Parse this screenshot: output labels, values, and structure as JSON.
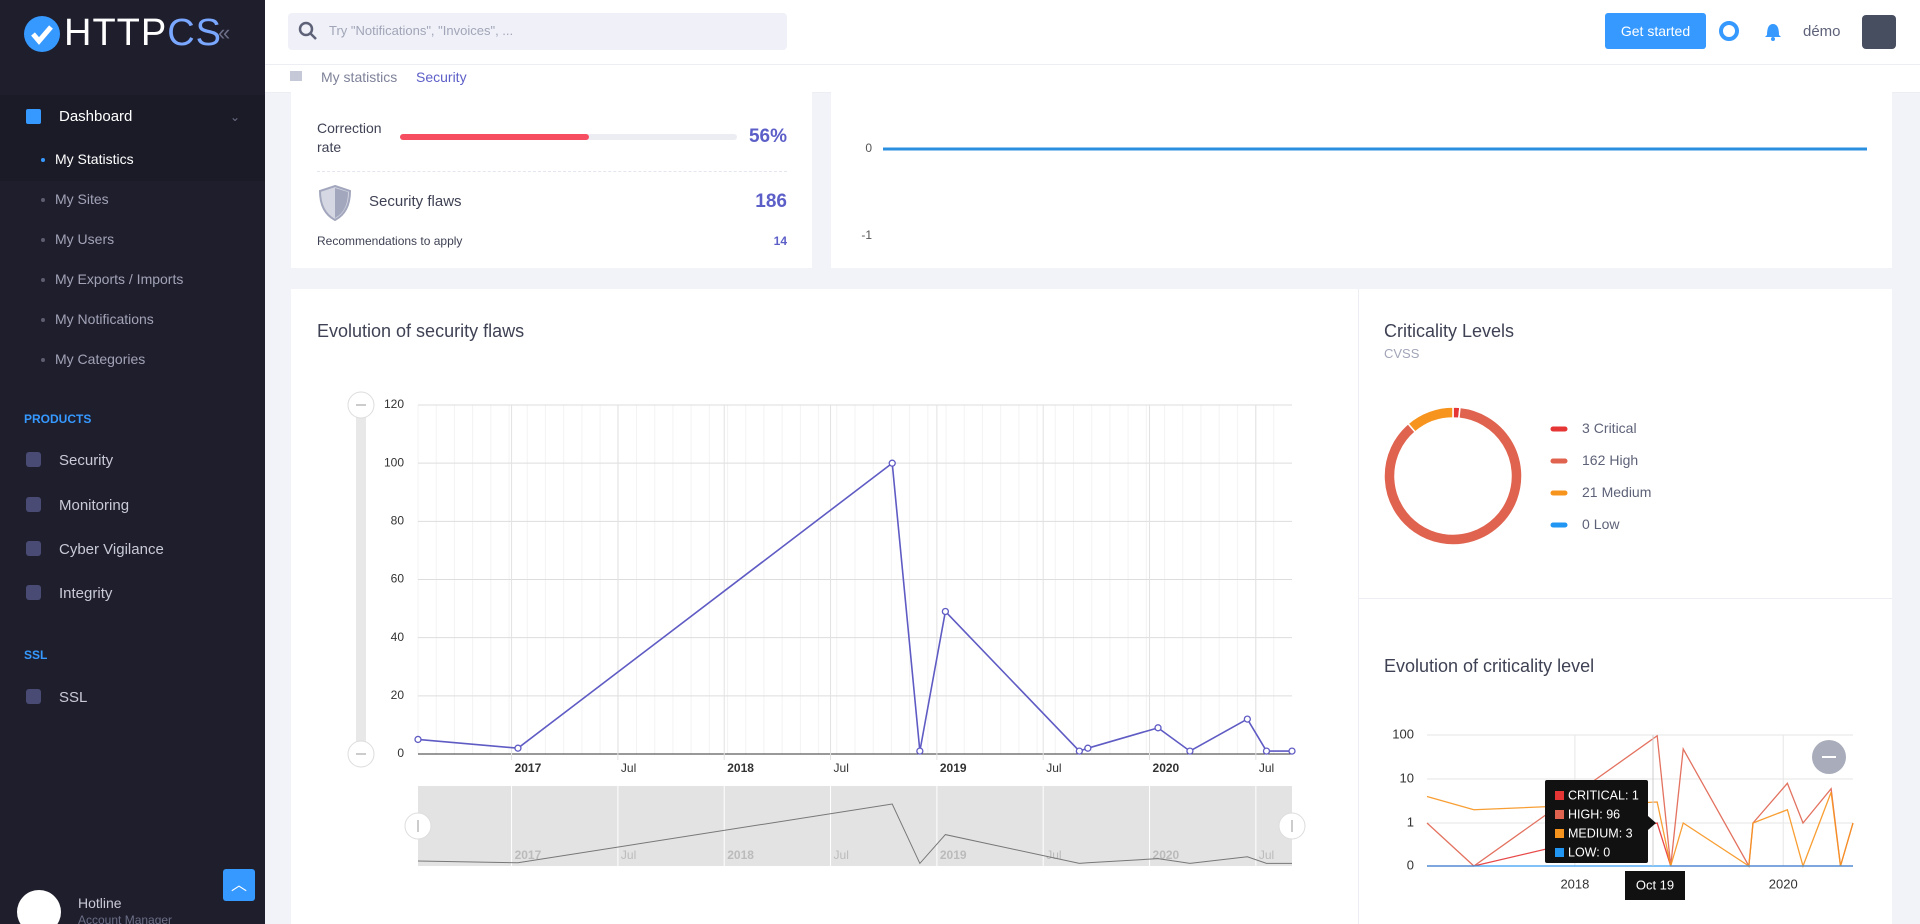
{
  "sidebar": {
    "logo": {
      "a": "HTTP",
      "b": "CS"
    },
    "menu": {
      "title": "Dashboard",
      "items": [
        "My Statistics",
        "My Sites",
        "My Users",
        "My Exports / Imports",
        "My Notifications",
        "My Categories"
      ]
    },
    "sections": [
      {
        "title": "PRODUCTS",
        "items": [
          "Security",
          "Monitoring",
          "Cyber Vigilance",
          "Integrity"
        ]
      },
      {
        "title": "SSL",
        "items": [
          "SSL"
        ]
      }
    ],
    "contact": {
      "name": "Hotline",
      "role": "Account Manager"
    }
  },
  "header": {
    "search_placeholder": "Try \"Notifications\", \"Invoices\", ...",
    "button": "Get started",
    "user": "démo"
  },
  "breadcrumb": [
    "My statistics",
    "Security"
  ],
  "summary": {
    "correction_rate": {
      "label": "Correction rate",
      "value": 56,
      "value_label": "56%"
    },
    "flaws": {
      "label": "Security flaws",
      "value": 186
    },
    "recommendations": {
      "label": "Recommendations to apply",
      "value": 14
    }
  },
  "chart_data": [
    {
      "type": "line",
      "values": [
        0,
        0
      ],
      "color": "#2b8fe0",
      "ylim": [
        -1,
        0
      ],
      "yticks": [
        0,
        -1
      ]
    },
    {
      "type": "line",
      "title": "Evolution of security flaws",
      "x": [
        2016.56,
        2017.03,
        2018.79,
        2018.92,
        2019.04,
        2019.67,
        2019.71,
        2020.04,
        2020.19,
        2020.46,
        2020.55,
        2020.67
      ],
      "series": [
        {
          "color": "#5f5bc4",
          "values": [
            5,
            2,
            100,
            1,
            49,
            1,
            2,
            9,
            1,
            12,
            1,
            1
          ]
        }
      ],
      "xlim": [
        2016.56,
        2020.67
      ],
      "xticks": [
        {
          "value": 2017,
          "label": "2017"
        },
        {
          "value": 2017.5,
          "label": "Jul"
        },
        {
          "value": 2018,
          "label": "2018"
        },
        {
          "value": 2018.5,
          "label": "Jul"
        },
        {
          "value": 2019,
          "label": "2019"
        },
        {
          "value": 2019.5,
          "label": "Jul"
        },
        {
          "value": 2020,
          "label": "2020"
        },
        {
          "value": 2020.5,
          "label": "Jul"
        }
      ],
      "ylim": [
        0,
        120
      ],
      "yticks": [
        0,
        20,
        40,
        60,
        80,
        100,
        120
      ],
      "grid": true,
      "navigator": true
    },
    {
      "type": "donut",
      "title": "Criticality Levels",
      "subtitle": "CVSS",
      "categories": [
        "Critical",
        "High",
        "Medium",
        "Low"
      ],
      "values": [
        3,
        162,
        21,
        0
      ],
      "colors": [
        "#e63535",
        "#e0634f",
        "#f7941d",
        "#2196f3"
      ]
    },
    {
      "type": "line",
      "title": "Evolution of criticality level",
      "log_scale": true,
      "x": [
        2016.58,
        2017.03,
        2018.79,
        2018.92,
        2019.04,
        2019.67,
        2019.71,
        2020.04,
        2020.19,
        2020.46,
        2020.55,
        2020.67
      ],
      "series": [
        {
          "color": "#e63535",
          "values": [
            0,
            0,
            1,
            0,
            0,
            0,
            0,
            0,
            0,
            0,
            0,
            0
          ]
        },
        {
          "color": "#e0634f",
          "values": [
            1,
            0,
            96,
            0,
            48,
            0,
            1,
            8,
            1,
            6,
            0,
            1
          ]
        },
        {
          "color": "#f7941d",
          "values": [
            4,
            2,
            3,
            0,
            1,
            0,
            1,
            2,
            0,
            5,
            0,
            1
          ]
        },
        {
          "color": "#2196f3",
          "values": [
            0,
            0,
            0,
            0,
            0,
            0,
            0,
            0,
            0,
            0,
            0,
            0
          ]
        }
      ],
      "xlim": [
        2016.58,
        2020.67
      ],
      "xticks": [
        {
          "value": 2018,
          "label": "2018"
        },
        {
          "value": 2020,
          "label": "2020"
        }
      ],
      "ylim": [
        0,
        100
      ],
      "yticks": [
        0,
        1,
        10,
        100
      ],
      "grid": true,
      "tooltip": {
        "date": "Oct 19",
        "lines": [
          "CRITICAL: 1",
          "HIGH: 96",
          "MEDIUM: 3",
          "LOW: 0"
        ]
      }
    }
  ]
}
